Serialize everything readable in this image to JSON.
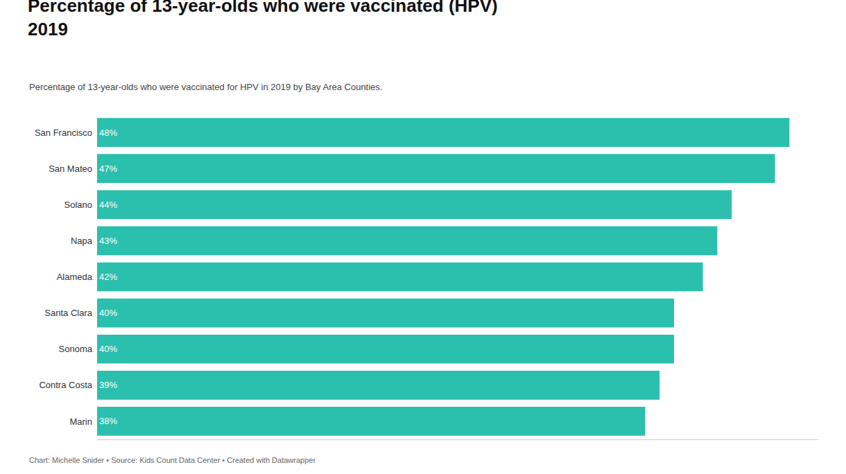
{
  "chart_data": {
    "type": "bar",
    "orientation": "horizontal",
    "title": "Percentage of 13-year-olds who were vaccinated (HPV)\n2019",
    "subtitle": "Percentage of 13-year-olds who were vaccinated for HPV in 2019 by Bay Area Counties.",
    "annotations": [
      "Chart: Michelle Snider • Source: Kids Count Data Center • Created with Datawrapper"
    ],
    "categories": [
      "San Francisco",
      "San Mateo",
      "Solano",
      "Napa",
      "Alameda",
      "Santa Clara",
      "Sonoma",
      "Contra Costa",
      "Marin"
    ],
    "values": [
      48,
      47,
      44,
      43,
      42,
      40,
      40,
      39,
      38
    ],
    "value_labels": [
      "48%",
      "47%",
      "44%",
      "43%",
      "42%",
      "40%",
      "40%",
      "39%",
      "38%"
    ],
    "data_labels": true,
    "color": "#2bbfad",
    "xlim": [
      0,
      50
    ],
    "grid": false,
    "tick_labels": "y"
  }
}
